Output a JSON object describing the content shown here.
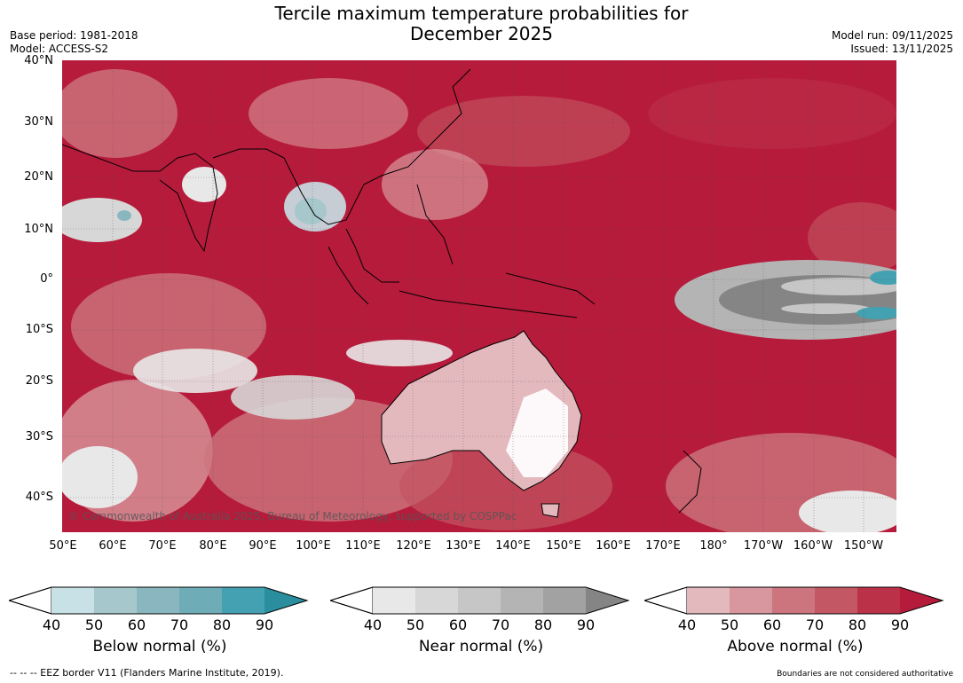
{
  "title": "Tercile maximum temperature probabilities for\nDecember 2025",
  "meta_left": [
    "Base period: 1981-2018",
    "Model: ACCESS-S2"
  ],
  "meta_right": [
    "Model run: 09/11/2025",
    "Issued: 13/11/2025"
  ],
  "map": {
    "credit": "© Commonwealth of Australia 2025, Bureau of Meteorology, supported by COSPPac",
    "lat_labels": [
      "40°N",
      "30°N",
      "20°N",
      "10°N",
      "0°",
      "10°S",
      "20°S",
      "30°S",
      "40°S"
    ],
    "lon_labels": [
      "50°E",
      "60°E",
      "70°E",
      "80°E",
      "90°E",
      "100°E",
      "110°E",
      "120°E",
      "130°E",
      "140°E",
      "150°E",
      "160°E",
      "170°E",
      "180°",
      "170°W",
      "160°W",
      "150°W"
    ],
    "ocean_color": "#b61b3b",
    "land_outline": "#000000"
  },
  "colorbars": [
    {
      "title": "Below normal (%)",
      "ticks": [
        "40",
        "50",
        "60",
        "70",
        "80",
        "90"
      ],
      "colors": [
        "#c8e1e6",
        "#a6c8cc",
        "#8ab7bf",
        "#6eadb7",
        "#43a1b1",
        "#2a8e9e"
      ]
    },
    {
      "title": "Near normal (%)",
      "ticks": [
        "40",
        "50",
        "60",
        "70",
        "80",
        "90"
      ],
      "colors": [
        "#e8e8e8",
        "#d7d7d7",
        "#c6c6c6",
        "#b4b4b4",
        "#a2a2a2",
        "#858585"
      ]
    },
    {
      "title": "Above normal (%)",
      "ticks": [
        "40",
        "50",
        "60",
        "70",
        "80",
        "90"
      ],
      "colors": [
        "#e3b9be",
        "#d8979e",
        "#cd757e",
        "#c35763",
        "#bb3148",
        "#b51b3a"
      ]
    }
  ],
  "footer_left": "--  --  -- EEZ border V11 (Flanders Marine Institute, 2019).",
  "footer_right": "Boundaries are not considered authoritative"
}
